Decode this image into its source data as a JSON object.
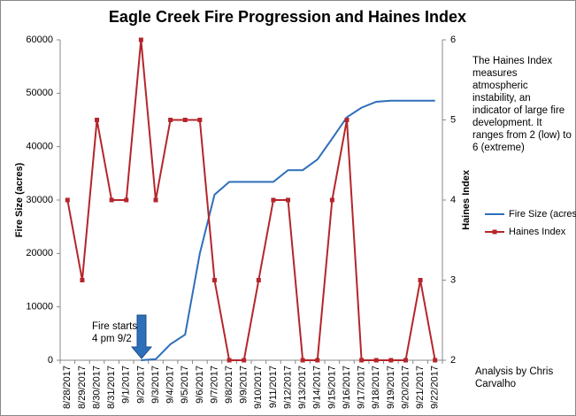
{
  "chart_data": {
    "type": "line",
    "title": "Eagle Creek Fire Progression and Haines Index",
    "categories": [
      "8/28/2017",
      "8/29/2017",
      "8/30/2017",
      "8/31/2017",
      "9/1/2017",
      "9/2/2017",
      "9/3/2017",
      "9/4/2017",
      "9/5/2017",
      "9/6/2017",
      "9/7/2017",
      "9/8/2017",
      "9/9/2017",
      "9/10/2017",
      "9/11/2017",
      "9/12/2017",
      "9/13/2017",
      "9/14/2017",
      "9/15/2017",
      "9/16/2017",
      "9/17/2017",
      "9/18/2017",
      "9/19/2017",
      "9/20/2017",
      "9/21/2017",
      "9/22/2017"
    ],
    "series": [
      {
        "name": "Fire Size (acres)",
        "color": "#2e6fba",
        "marker": false,
        "values": [
          null,
          null,
          null,
          null,
          null,
          0,
          200,
          3000,
          4800,
          20000,
          31000,
          33400,
          33400,
          33400,
          33400,
          35600,
          35600,
          37600,
          41500,
          45500,
          47300,
          48400,
          48600,
          48600,
          48600,
          48600
        ]
      },
      {
        "name": "Haines Index",
        "color": "#b5252b",
        "marker": true,
        "axis": "y2",
        "values": [
          4,
          3,
          5,
          4,
          4,
          6,
          4,
          5,
          5,
          5,
          3,
          2,
          2,
          3,
          4,
          4,
          2,
          2,
          4,
          5,
          2,
          2,
          2,
          2,
          3,
          2
        ]
      }
    ],
    "ylabel": "Fire Size (acres)",
    "y2label": "Haines Index",
    "ylim": [
      0,
      60000
    ],
    "yticks": [
      0,
      10000,
      20000,
      30000,
      40000,
      50000,
      60000
    ],
    "y2lim": [
      2,
      6
    ],
    "y2ticks": [
      2,
      3,
      4,
      5,
      6
    ],
    "grid": false,
    "legend": "right",
    "annotations": [
      "The Haines Index measures atmospheric instability, an indicator of large fire development. It ranges from 2 (low) to 6 (extreme)",
      "Fire starts 4 pm 9/2",
      "Analysis by Chris Carvalho"
    ]
  }
}
